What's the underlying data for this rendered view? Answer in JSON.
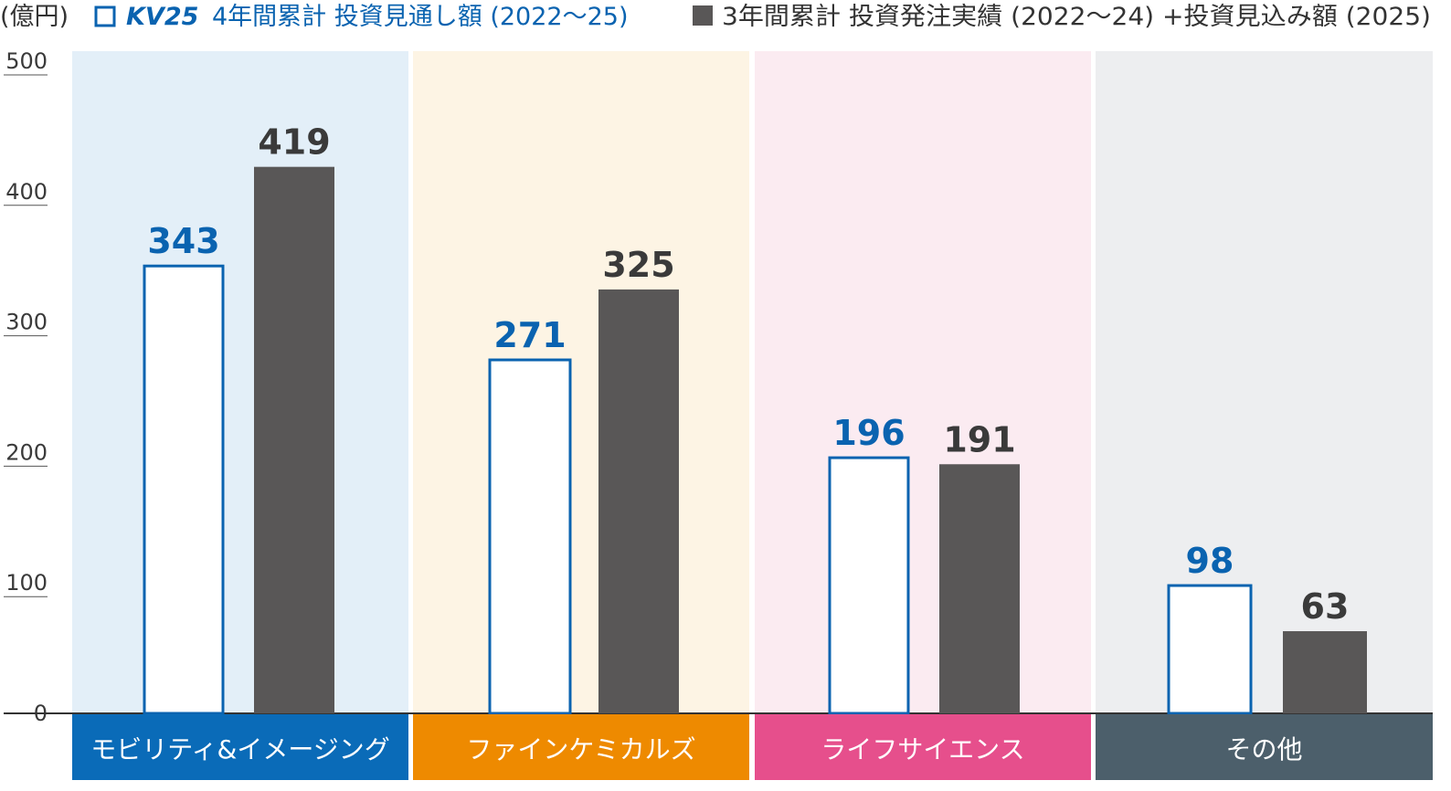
{
  "unit_label": "(億円)",
  "colors": {
    "blue": "#0a63b0",
    "dark": "#595757",
    "axis": "#333333"
  },
  "legend": [
    {
      "brand": "KV25",
      "text": "4年間累計 投資見通し額 (2022～25)",
      "style": "outline",
      "color": "#0a63b0"
    },
    {
      "brand": "",
      "text": "3年間累計 投資発注実績 (2022～24) +投資見込み額 (2025)",
      "style": "filled",
      "color": "#595757"
    }
  ],
  "chart_data": {
    "type": "bar",
    "categories": [
      "モビリティ&イメージング",
      "ファインケミカルズ",
      "ライフサイエンス",
      "その他"
    ],
    "category_colors": [
      "#0a6bb8",
      "#ee8a00",
      "#e64f8c",
      "#4c5f6b"
    ],
    "panel_colors": [
      "#e3eff8",
      "#fdf4e4",
      "#fbebf1",
      "#edeef0"
    ],
    "series": [
      {
        "name": "KV25 4年間累計 投資見通し額 (2022～25)",
        "values": [
          343,
          271,
          196,
          98
        ],
        "style": "outline",
        "color": "#0a63b0"
      },
      {
        "name": "3年間累計 投資発注実績 (2022～24) +投資見込み額 (2025)",
        "values": [
          419,
          325,
          191,
          63
        ],
        "style": "filled",
        "color": "#595757"
      }
    ],
    "ylim": [
      0,
      500
    ],
    "yticks": [
      0,
      100,
      200,
      300,
      400,
      500
    ],
    "ylabel": "(億円)",
    "xlabel": "",
    "title": "",
    "grid": false,
    "legend_position": "top"
  }
}
